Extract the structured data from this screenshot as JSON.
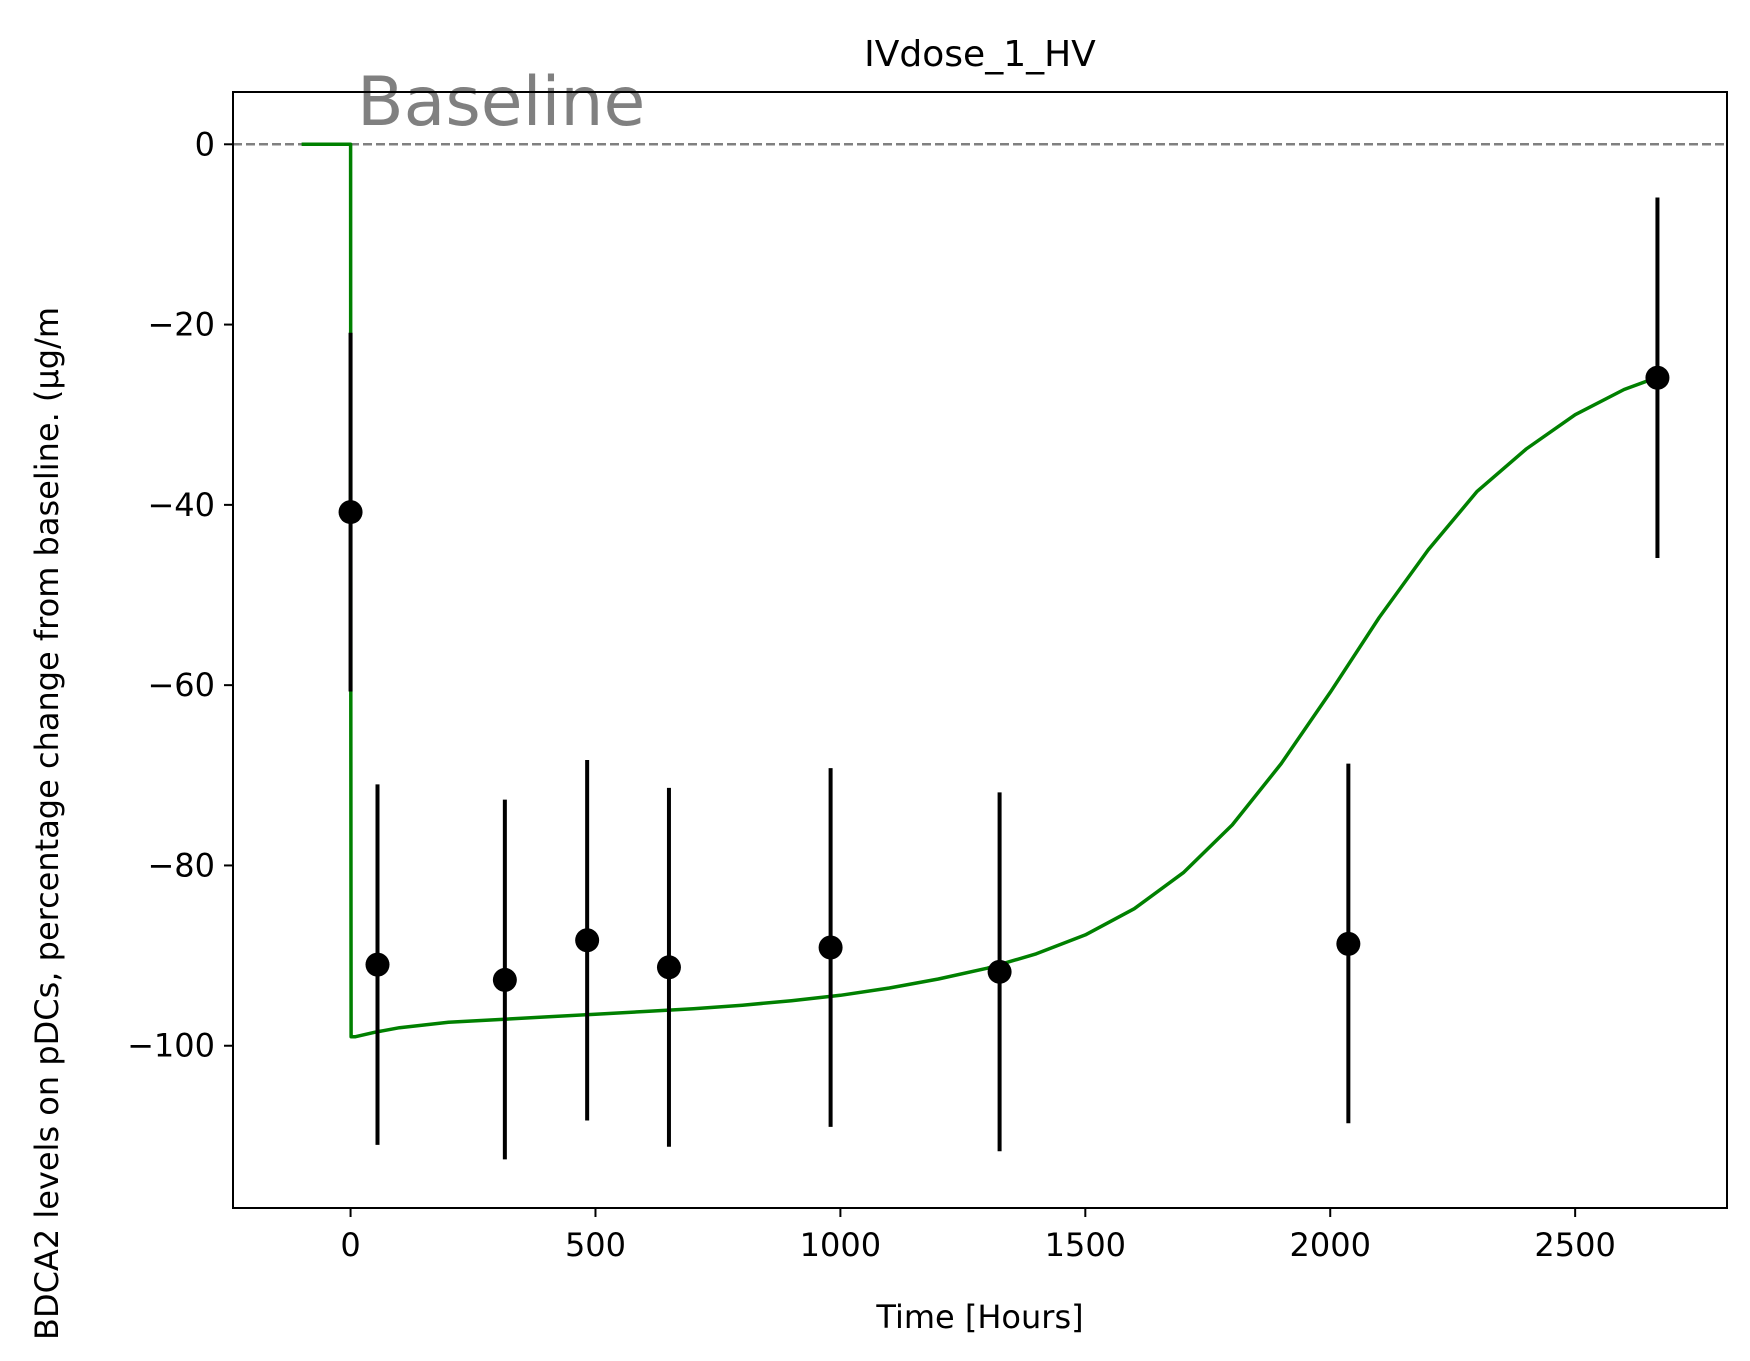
{
  "chart_data": {
    "type": "line",
    "title": "IVdose_1_HV",
    "xlabel": "Time [Hours]",
    "ylabel": "BDCA2 levels on pDCs, percentage change from baseline. (µg/m",
    "xlim": [
      -240,
      2810
    ],
    "ylim": [
      -118,
      5.8
    ],
    "xticks": [
      0,
      500,
      1000,
      1500,
      2000,
      2500
    ],
    "yticks": [
      0,
      -20,
      -40,
      -60,
      -80,
      -100
    ],
    "xtick_labels": [
      "0",
      "500",
      "1000",
      "1500",
      "2000",
      "2500"
    ],
    "ytick_labels": [
      "0",
      "−20",
      "−40",
      "−60",
      "−80",
      "−100"
    ],
    "grid": false,
    "baseline": {
      "y": 0,
      "label": "Baseline",
      "color": "#808080",
      "style": "dashed"
    },
    "model": {
      "color": "#008000",
      "x": [
        -100,
        0,
        0.5,
        1,
        10,
        50,
        100,
        150,
        200,
        300,
        400,
        500,
        600,
        700,
        800,
        900,
        1000,
        1100,
        1200,
        1300,
        1400,
        1500,
        1600,
        1700,
        1800,
        1900,
        2000,
        2100,
        2200,
        2300,
        2400,
        2500,
        2600,
        2660
      ],
      "y": [
        0,
        0,
        -60,
        -99,
        -99,
        -98.5,
        -98,
        -97.7,
        -97.4,
        -97.1,
        -96.8,
        -96.5,
        -96.2,
        -95.9,
        -95.5,
        -95,
        -94.4,
        -93.6,
        -92.6,
        -91.4,
        -89.8,
        -87.7,
        -84.8,
        -80.8,
        -75.5,
        -68.7,
        -60.8,
        -52.5,
        -45.0,
        -38.5,
        -33.8,
        -30.0,
        -27.2,
        -26
      ]
    },
    "observed": {
      "color": "#000000",
      "points": [
        {
          "x": 0,
          "y": -40.8,
          "low": -60.7,
          "high": -20.9
        },
        {
          "x": 55,
          "y": -91.0,
          "low": -111.0,
          "high": -71.0
        },
        {
          "x": 315,
          "y": -92.7,
          "low": -112.6,
          "high": -72.7
        },
        {
          "x": 483,
          "y": -88.3,
          "low": -108.3,
          "high": -68.3
        },
        {
          "x": 650,
          "y": -91.3,
          "low": -111.2,
          "high": -71.4
        },
        {
          "x": 980,
          "y": -89.1,
          "low": -109.0,
          "high": -69.2
        },
        {
          "x": 1325,
          "y": -91.8,
          "low": -111.7,
          "high": -71.9
        },
        {
          "x": 2037,
          "y": -88.7,
          "low": -108.6,
          "high": -68.7
        },
        {
          "x": 2668,
          "y": -25.9,
          "low": -45.9,
          "high": -5.9
        }
      ]
    }
  }
}
